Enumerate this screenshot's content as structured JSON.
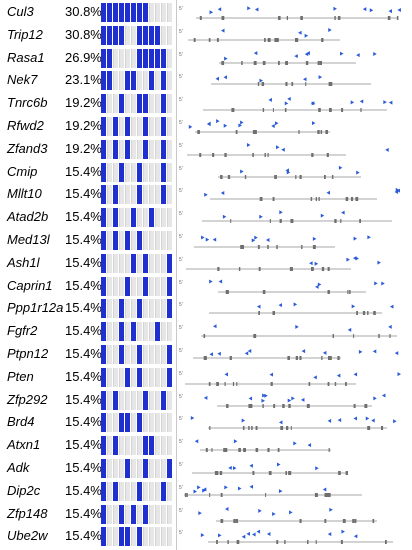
{
  "colors": {
    "hit": "#1f2fd0",
    "empty": "#e6e6e6",
    "insertion": "#2b5bd6",
    "gene_line": "#8a8a8a"
  },
  "rows": [
    {
      "gene": "Cul3",
      "pct": "30.8%",
      "hits": [
        0,
        1,
        2,
        3,
        4,
        5,
        6,
        7
      ]
    },
    {
      "gene": "Trip12",
      "pct": "30.8%",
      "hits": [
        0,
        1,
        2,
        3,
        6,
        7,
        8,
        9
      ]
    },
    {
      "gene": "Rasa1",
      "pct": "26.9%",
      "hits": [
        0,
        1,
        6,
        7,
        8,
        9,
        10
      ]
    },
    {
      "gene": "Nek7",
      "pct": "23.1%",
      "hits": [
        0,
        1,
        4,
        5,
        8,
        10
      ]
    },
    {
      "gene": "Tnrc6b",
      "pct": "19.2%",
      "hits": [
        0,
        3,
        6,
        7,
        10
      ]
    },
    {
      "gene": "Rfwd2",
      "pct": "19.2%",
      "hits": [
        0,
        2,
        4,
        7,
        10
      ]
    },
    {
      "gene": "Zfand3",
      "pct": "19.2%",
      "hits": [
        0,
        2,
        4,
        7,
        10
      ]
    },
    {
      "gene": "Cmip",
      "pct": "15.4%",
      "hits": [
        0,
        3,
        6,
        10
      ]
    },
    {
      "gene": "Mllt10",
      "pct": "15.4%",
      "hits": [
        0,
        2,
        6,
        10
      ]
    },
    {
      "gene": "Atad2b",
      "pct": "15.4%",
      "hits": [
        0,
        2,
        5,
        8
      ]
    },
    {
      "gene": "Med13l",
      "pct": "15.4%",
      "hits": [
        0,
        2,
        4,
        6
      ]
    },
    {
      "gene": "Ash1l",
      "pct": "15.4%",
      "hits": [
        0,
        5,
        7,
        11
      ]
    },
    {
      "gene": "Caprin1",
      "pct": "15.4%",
      "hits": [
        0,
        4,
        7,
        11
      ]
    },
    {
      "gene": "Ppp1r12a",
      "pct": "15.4%",
      "hits": [
        0,
        3,
        6,
        11
      ]
    },
    {
      "gene": "Fgfr2",
      "pct": "15.4%",
      "hits": [
        0,
        3,
        5,
        9
      ]
    },
    {
      "gene": "Ptpn12",
      "pct": "15.4%",
      "hits": [
        0,
        3,
        6,
        11
      ]
    },
    {
      "gene": "Pten",
      "pct": "15.4%",
      "hits": [
        0,
        4,
        6,
        11
      ]
    },
    {
      "gene": "Zfp292",
      "pct": "15.4%",
      "hits": [
        0,
        2,
        7,
        10
      ]
    },
    {
      "gene": "Brd4",
      "pct": "15.4%",
      "hits": [
        0,
        3,
        4,
        6
      ]
    },
    {
      "gene": "Atxn1",
      "pct": "15.4%",
      "hits": [
        0,
        2,
        7,
        8
      ]
    },
    {
      "gene": "Adk",
      "pct": "15.4%",
      "hits": [
        0,
        4,
        7,
        11
      ]
    },
    {
      "gene": "Dip2c",
      "pct": "15.4%",
      "hits": [
        0,
        2,
        6,
        10
      ]
    },
    {
      "gene": "Zfp148",
      "pct": "15.4%",
      "hits": [
        0,
        3,
        5,
        7
      ]
    },
    {
      "gene": "Ube2w",
      "pct": "15.4%",
      "hits": [
        0,
        3,
        4,
        6
      ]
    }
  ]
}
